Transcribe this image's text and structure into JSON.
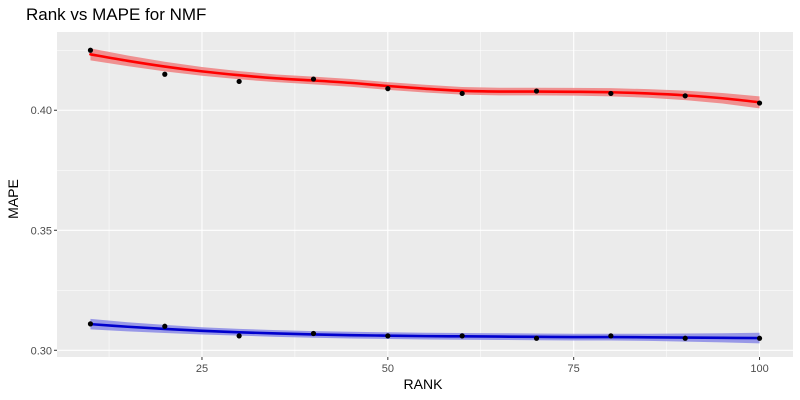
{
  "chart_data": {
    "type": "line",
    "title": "Rank vs MAPE for NMF",
    "xlabel": "RANK",
    "ylabel": "MAPE",
    "xlim": [
      5.5,
      104.5
    ],
    "ylim": [
      0.2972,
      0.4326
    ],
    "x_ticks": [
      25,
      50,
      75,
      100
    ],
    "x_tick_labels": [
      "25",
      "50",
      "75",
      "100"
    ],
    "y_ticks": [
      0.3,
      0.35,
      0.4
    ],
    "y_tick_labels": [
      "0.30",
      "0.35",
      "0.40"
    ],
    "grid": true,
    "legend": "none",
    "series": [
      {
        "color": "#ff0000",
        "ribbon_color": "#f08080",
        "points": {
          "x": [
            10,
            20,
            30,
            40,
            50,
            60,
            70,
            80,
            90,
            100
          ],
          "y": [
            0.425,
            0.415,
            0.412,
            0.413,
            0.409,
            0.407,
            0.408,
            0.407,
            0.406,
            0.403
          ]
        },
        "smooth": {
          "x": [
            10,
            15,
            20,
            25,
            30,
            35,
            40,
            45,
            50,
            55,
            60,
            65,
            70,
            75,
            80,
            85,
            90,
            95,
            100
          ],
          "y": [
            0.4233,
            0.4206,
            0.4182,
            0.4162,
            0.4146,
            0.4133,
            0.4124,
            0.4114,
            0.4101,
            0.409,
            0.4081,
            0.4078,
            0.4078,
            0.4077,
            0.4075,
            0.407,
            0.4062,
            0.405,
            0.4033
          ],
          "se": [
            0.0025,
            0.0022,
            0.002,
            0.0018,
            0.0017,
            0.0016,
            0.0016,
            0.0016,
            0.0016,
            0.0016,
            0.0016,
            0.0016,
            0.0016,
            0.0016,
            0.0017,
            0.0018,
            0.002,
            0.0022,
            0.0025
          ]
        }
      },
      {
        "color": "#0000cd",
        "ribbon_color": "#8a8ae6",
        "points": {
          "x": [
            10,
            20,
            30,
            40,
            50,
            60,
            70,
            80,
            90,
            100
          ],
          "y": [
            0.311,
            0.31,
            0.306,
            0.307,
            0.306,
            0.306,
            0.305,
            0.306,
            0.305,
            0.305
          ]
        },
        "smooth": {
          "x": [
            10,
            15,
            20,
            25,
            30,
            35,
            40,
            45,
            50,
            55,
            60,
            65,
            70,
            75,
            80,
            85,
            90,
            95,
            100
          ],
          "y": [
            0.3109,
            0.3098,
            0.3089,
            0.3081,
            0.3075,
            0.307,
            0.3066,
            0.3063,
            0.3061,
            0.3059,
            0.3058,
            0.3057,
            0.3056,
            0.3055,
            0.3055,
            0.3054,
            0.3053,
            0.3052,
            0.3051
          ],
          "se": [
            0.0022,
            0.0019,
            0.0017,
            0.0015,
            0.0014,
            0.0014,
            0.0014,
            0.0014,
            0.0014,
            0.0014,
            0.0014,
            0.0014,
            0.0014,
            0.0014,
            0.0014,
            0.0015,
            0.0017,
            0.0019,
            0.0022
          ]
        }
      }
    ]
  }
}
